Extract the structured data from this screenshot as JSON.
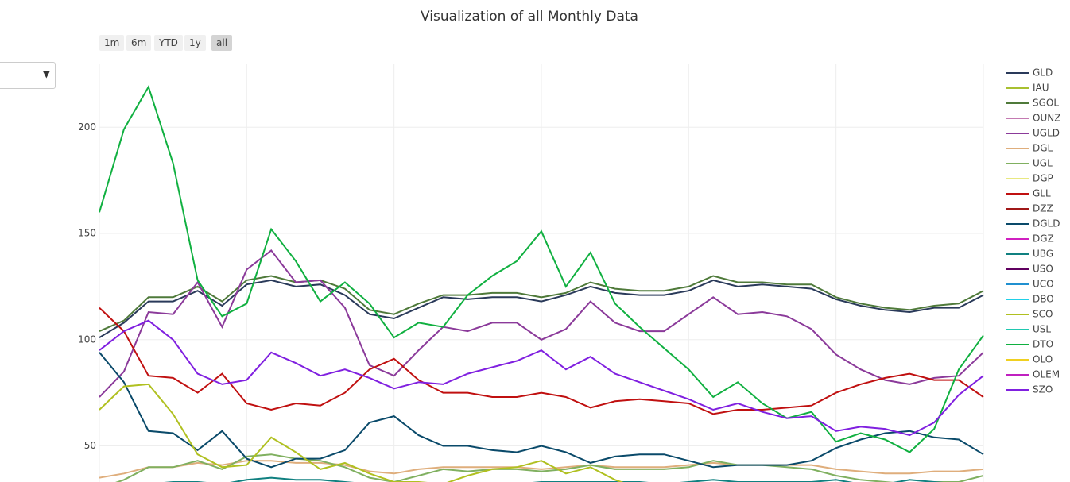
{
  "chart_data": {
    "type": "line",
    "title": "Visualization of all Monthly Data",
    "range_buttons": [
      "1m",
      "6m",
      "YTD",
      "1y",
      "all"
    ],
    "categories": [
      null,
      null,
      null,
      null,
      null,
      null,
      null,
      null,
      null,
      null,
      null,
      null,
      null,
      null,
      null,
      null,
      null,
      null,
      null,
      null,
      null,
      null,
      null,
      null,
      null,
      null,
      null,
      null,
      null,
      null,
      null,
      null,
      null,
      null,
      null,
      null,
      null
    ],
    "ylim": [
      33,
      230
    ],
    "yticks": [
      50,
      100,
      150,
      200
    ],
    "grid": true,
    "series": [
      {
        "name": "GLD",
        "color": "#2a3a5a",
        "values": [
          101,
          108,
          118,
          118,
          123,
          116,
          126,
          128,
          125,
          126,
          121,
          112,
          110,
          115,
          120,
          119,
          120,
          120,
          118,
          121,
          125,
          122,
          121,
          121,
          123,
          128,
          125,
          126,
          125,
          124,
          119,
          116,
          114,
          113,
          115,
          115,
          121
        ]
      },
      {
        "name": "IAU",
        "color": "#a8c030",
        "values": [
          null,
          null,
          null,
          null,
          null,
          null,
          null,
          null,
          null,
          null,
          null,
          null,
          null,
          null,
          null,
          null,
          null,
          null,
          null,
          null,
          null,
          null,
          null,
          null,
          null,
          null,
          null,
          null,
          null,
          null,
          null,
          null,
          null,
          null,
          null,
          null,
          null
        ]
      },
      {
        "name": "SGOL",
        "color": "#4f7a3a",
        "values": [
          104,
          109,
          120,
          120,
          125,
          118,
          128,
          130,
          127,
          128,
          124,
          114,
          112,
          117,
          121,
          121,
          122,
          122,
          120,
          122,
          127,
          124,
          123,
          123,
          125,
          130,
          127,
          127,
          126,
          126,
          120,
          117,
          115,
          114,
          116,
          117,
          123
        ]
      },
      {
        "name": "OUNZ",
        "color": "#c47ab2",
        "values": [
          null,
          null,
          null,
          null,
          null,
          null,
          null,
          null,
          null,
          null,
          null,
          null,
          null,
          null,
          null,
          null,
          null,
          null,
          null,
          null,
          null,
          null,
          null,
          null,
          null,
          null,
          null,
          null,
          null,
          null,
          null,
          null,
          null,
          null,
          null,
          null,
          null
        ]
      },
      {
        "name": "UGLD",
        "color": "#8b3a9a",
        "values": [
          73,
          85,
          113,
          112,
          127,
          106,
          133,
          142,
          127,
          128,
          115,
          88,
          83,
          95,
          106,
          104,
          108,
          108,
          100,
          105,
          118,
          108,
          104,
          104,
          112,
          120,
          112,
          113,
          111,
          105,
          93,
          86,
          81,
          79,
          82,
          83,
          94
        ]
      },
      {
        "name": "DGL",
        "color": "#dfae7c",
        "values": [
          35,
          37,
          40,
          40,
          42,
          41,
          43,
          43,
          42,
          42,
          41,
          38,
          37,
          39,
          40,
          40,
          40,
          40,
          39,
          40,
          41,
          40,
          40,
          40,
          41,
          42,
          41,
          41,
          41,
          41,
          39,
          38,
          37,
          37,
          38,
          38,
          39
        ]
      },
      {
        "name": "UGL",
        "color": "#80b060",
        "values": [
          30,
          34,
          40,
          40,
          43,
          39,
          45,
          46,
          44,
          43,
          40,
          35,
          33,
          36,
          39,
          38,
          39,
          39,
          38,
          39,
          41,
          39,
          39,
          39,
          40,
          43,
          41,
          41,
          40,
          39,
          36,
          34,
          33,
          32,
          33,
          33,
          36
        ]
      },
      {
        "name": "DGP",
        "color": "#e8e880",
        "values": [
          null,
          null,
          null,
          null,
          null,
          null,
          null,
          null,
          null,
          null,
          null,
          null,
          null,
          null,
          null,
          null,
          null,
          null,
          null,
          null,
          null,
          null,
          null,
          null,
          null,
          null,
          null,
          null,
          null,
          null,
          null,
          null,
          null,
          null,
          null,
          null,
          null
        ]
      },
      {
        "name": "GLL",
        "color": "#c01010",
        "values": [
          115,
          104,
          83,
          82,
          75,
          84,
          70,
          67,
          70,
          69,
          75,
          86,
          91,
          81,
          75,
          75,
          73,
          73,
          75,
          73,
          68,
          71,
          72,
          71,
          70,
          65,
          67,
          67,
          68,
          69,
          75,
          79,
          82,
          84,
          81,
          81,
          73
        ]
      },
      {
        "name": "DZZ",
        "color": "#a01818",
        "values": [
          null,
          null,
          null,
          null,
          null,
          null,
          null,
          null,
          null,
          null,
          null,
          null,
          null,
          null,
          null,
          null,
          null,
          null,
          null,
          null,
          null,
          null,
          null,
          null,
          null,
          null,
          null,
          null,
          null,
          null,
          null,
          null,
          null,
          null,
          null,
          null,
          null
        ]
      },
      {
        "name": "DGLD",
        "color": "#0a4a6a",
        "values": [
          94,
          80,
          57,
          56,
          48,
          57,
          44,
          40,
          44,
          44,
          48,
          61,
          64,
          55,
          50,
          50,
          48,
          47,
          50,
          47,
          42,
          45,
          46,
          46,
          43,
          40,
          41,
          41,
          41,
          43,
          49,
          53,
          56,
          57,
          54,
          53,
          46
        ]
      },
      {
        "name": "DGZ",
        "color": "#d020c0",
        "values": [
          null,
          null,
          null,
          null,
          null,
          null,
          null,
          null,
          null,
          null,
          null,
          null,
          null,
          null,
          null,
          null,
          null,
          null,
          null,
          null,
          null,
          null,
          null,
          null,
          null,
          null,
          null,
          null,
          null,
          null,
          null,
          null,
          null,
          null,
          null,
          null,
          null
        ]
      },
      {
        "name": "UBG",
        "color": "#108080",
        "values": [
          30,
          31,
          32,
          33,
          33,
          32,
          34,
          35,
          34,
          34,
          33,
          32,
          31,
          31,
          32,
          32,
          32,
          32,
          33,
          33,
          33,
          33,
          33,
          32,
          33,
          34,
          33,
          33,
          33,
          33,
          34,
          32,
          32,
          34,
          33,
          32,
          32
        ]
      },
      {
        "name": "USO",
        "color": "#600060",
        "values": [
          null,
          null,
          null,
          null,
          null,
          null,
          null,
          null,
          null,
          null,
          null,
          null,
          null,
          null,
          null,
          null,
          null,
          null,
          null,
          null,
          null,
          null,
          null,
          null,
          null,
          null,
          null,
          null,
          null,
          null,
          null,
          null,
          null,
          null,
          null,
          null,
          null
        ]
      },
      {
        "name": "UCO",
        "color": "#2090d0",
        "values": [
          null,
          null,
          null,
          null,
          null,
          null,
          null,
          null,
          null,
          null,
          null,
          null,
          null,
          null,
          null,
          null,
          null,
          null,
          null,
          null,
          null,
          null,
          null,
          null,
          null,
          null,
          null,
          null,
          null,
          null,
          null,
          null,
          null,
          null,
          null,
          null,
          null
        ]
      },
      {
        "name": "DBO",
        "color": "#20d0e8",
        "values": [
          null,
          null,
          null,
          null,
          null,
          null,
          null,
          null,
          null,
          null,
          null,
          null,
          null,
          null,
          null,
          null,
          null,
          null,
          null,
          null,
          null,
          null,
          null,
          null,
          null,
          null,
          null,
          null,
          null,
          null,
          null,
          null,
          null,
          null,
          null,
          null,
          null
        ]
      },
      {
        "name": "SCO",
        "color": "#b0c020",
        "values": [
          67,
          78,
          79,
          65,
          46,
          40,
          41,
          54,
          47,
          39,
          42,
          37,
          33,
          33,
          32,
          36,
          39,
          40,
          43,
          37,
          40,
          34,
          30,
          30,
          30,
          30,
          30,
          30,
          30,
          30,
          30,
          30,
          30,
          30,
          30,
          30,
          30
        ]
      },
      {
        "name": "USL",
        "color": "#20c8b0",
        "values": [
          null,
          null,
          null,
          null,
          null,
          null,
          null,
          null,
          null,
          null,
          null,
          null,
          null,
          null,
          null,
          null,
          null,
          null,
          null,
          null,
          null,
          null,
          null,
          null,
          null,
          null,
          null,
          null,
          null,
          null,
          null,
          null,
          null,
          null,
          null,
          null,
          null
        ]
      },
      {
        "name": "DTO",
        "color": "#10b040",
        "values": [
          160,
          199,
          219,
          183,
          128,
          111,
          117,
          152,
          137,
          118,
          127,
          117,
          101,
          108,
          106,
          121,
          130,
          137,
          151,
          125,
          141,
          117,
          106,
          96,
          86,
          73,
          80,
          70,
          63,
          66,
          52,
          56,
          53,
          47,
          58,
          86,
          102
        ]
      },
      {
        "name": "OLO",
        "color": "#f0d020",
        "values": [
          null,
          null,
          null,
          null,
          null,
          null,
          null,
          null,
          null,
          null,
          null,
          null,
          null,
          null,
          null,
          null,
          null,
          null,
          null,
          null,
          null,
          null,
          null,
          null,
          null,
          null,
          null,
          null,
          null,
          null,
          null,
          null,
          null,
          null,
          null,
          null,
          null
        ]
      },
      {
        "name": "OLEM",
        "color": "#c020c0",
        "values": [
          null,
          null,
          null,
          null,
          null,
          null,
          null,
          null,
          null,
          null,
          null,
          null,
          null,
          null,
          null,
          null,
          null,
          null,
          null,
          null,
          null,
          null,
          null,
          null,
          null,
          null,
          null,
          null,
          null,
          null,
          null,
          null,
          null,
          null,
          null,
          null,
          null
        ]
      },
      {
        "name": "SZO",
        "color": "#8020e0",
        "values": [
          95,
          104,
          109,
          100,
          84,
          79,
          81,
          94,
          89,
          83,
          86,
          82,
          77,
          80,
          79,
          84,
          87,
          90,
          95,
          86,
          92,
          84,
          80,
          76,
          72,
          67,
          70,
          66,
          63,
          64,
          57,
          59,
          58,
          55,
          61,
          74,
          83
        ]
      }
    ]
  }
}
